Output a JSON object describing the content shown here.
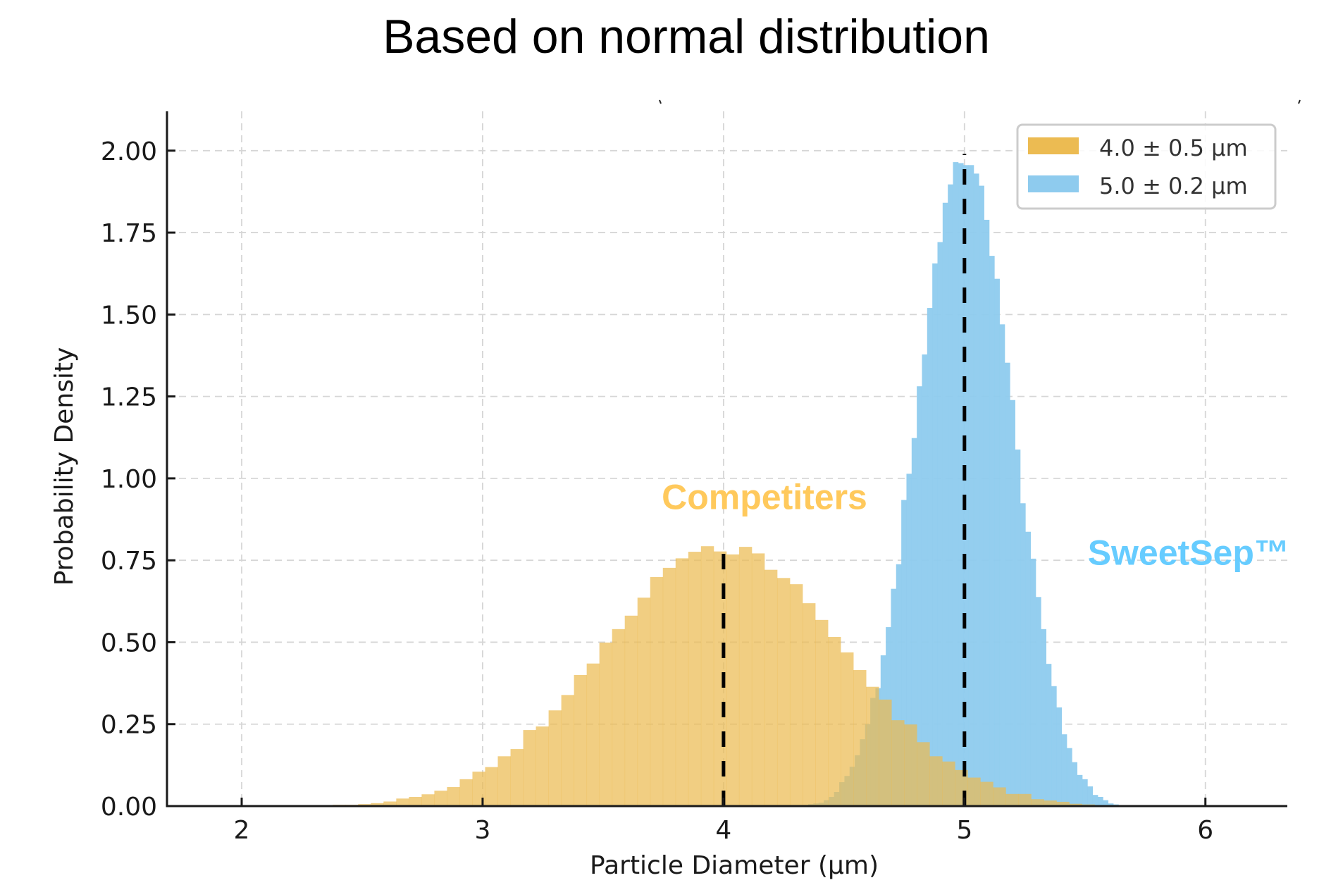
{
  "chart_data": {
    "type": "bar",
    "subtype": "histogram",
    "title": "Based on normal distribution",
    "xlabel": "Particle Diameter (µm)",
    "ylabel": "Probability Density",
    "xlim": [
      1.69,
      6.34
    ],
    "ylim": [
      0,
      2.12
    ],
    "xticks": [
      2,
      3,
      4,
      5,
      6
    ],
    "xtick_labels": [
      "2",
      "3",
      "4",
      "5",
      "6"
    ],
    "yticks": [
      0,
      0.25,
      0.5,
      0.75,
      1.0,
      1.25,
      1.5,
      1.75,
      2.0
    ],
    "ytick_labels": [
      "0.00",
      "0.25",
      "0.50",
      "0.75",
      "1.00",
      "1.25",
      "1.50",
      "1.75",
      "2.00"
    ],
    "grid": true,
    "legend_position": "top-right",
    "series": [
      {
        "name": "4.0 ± 0.5 µm",
        "color": "#ECBB52",
        "opacity": 0.88,
        "mean": 4.0,
        "std": 0.5,
        "bin_start": 2.378,
        "bin_width": 0.0527,
        "values": [
          0.004,
          0.004,
          0.006,
          0.009,
          0.014,
          0.023,
          0.028,
          0.036,
          0.047,
          0.058,
          0.082,
          0.105,
          0.119,
          0.152,
          0.174,
          0.232,
          0.243,
          0.292,
          0.339,
          0.4,
          0.435,
          0.499,
          0.54,
          0.581,
          0.636,
          0.699,
          0.727,
          0.756,
          0.776,
          0.793,
          0.777,
          0.768,
          0.791,
          0.771,
          0.721,
          0.696,
          0.677,
          0.619,
          0.568,
          0.516,
          0.469,
          0.415,
          0.364,
          0.325,
          0.262,
          0.249,
          0.195,
          0.152,
          0.136,
          0.11,
          0.087,
          0.074,
          0.057,
          0.037,
          0.037,
          0.021,
          0.017,
          0.013,
          0.007,
          0.005,
          0.003,
          0.002
        ],
        "mean_line_top": 0.78
      },
      {
        "name": "5.0 ± 0.2 µm",
        "color": "#8ECBEE",
        "opacity": 0.88,
        "mean": 5.0,
        "std": 0.2,
        "bin_start": 4.33,
        "bin_width": 0.02146,
        "values": [
          0.003,
          0.006,
          0.008,
          0.01,
          0.018,
          0.028,
          0.043,
          0.073,
          0.092,
          0.12,
          0.155,
          0.204,
          0.25,
          0.33,
          0.36,
          0.46,
          0.546,
          0.663,
          0.738,
          0.934,
          1.014,
          1.123,
          1.281,
          1.378,
          1.52,
          1.656,
          1.721,
          1.841,
          1.897,
          1.965,
          1.962,
          1.956,
          1.956,
          1.93,
          1.893,
          1.789,
          1.679,
          1.609,
          1.47,
          1.353,
          1.239,
          1.088,
          0.924,
          0.837,
          0.755,
          0.638,
          0.54,
          0.434,
          0.366,
          0.301,
          0.219,
          0.177,
          0.134,
          0.095,
          0.082,
          0.06,
          0.034,
          0.028,
          0.018,
          0.008,
          0.005,
          0.003,
          0.002
        ],
        "mean_line_top": 1.99
      }
    ],
    "annotations": [
      {
        "text": "Competiters",
        "x": 4.17,
        "y": 0.945,
        "color": "#FFC95C"
      },
      {
        "text": "SweetSep™",
        "x": 5.93,
        "y": 0.775,
        "color": "#66CCFF"
      }
    ]
  }
}
